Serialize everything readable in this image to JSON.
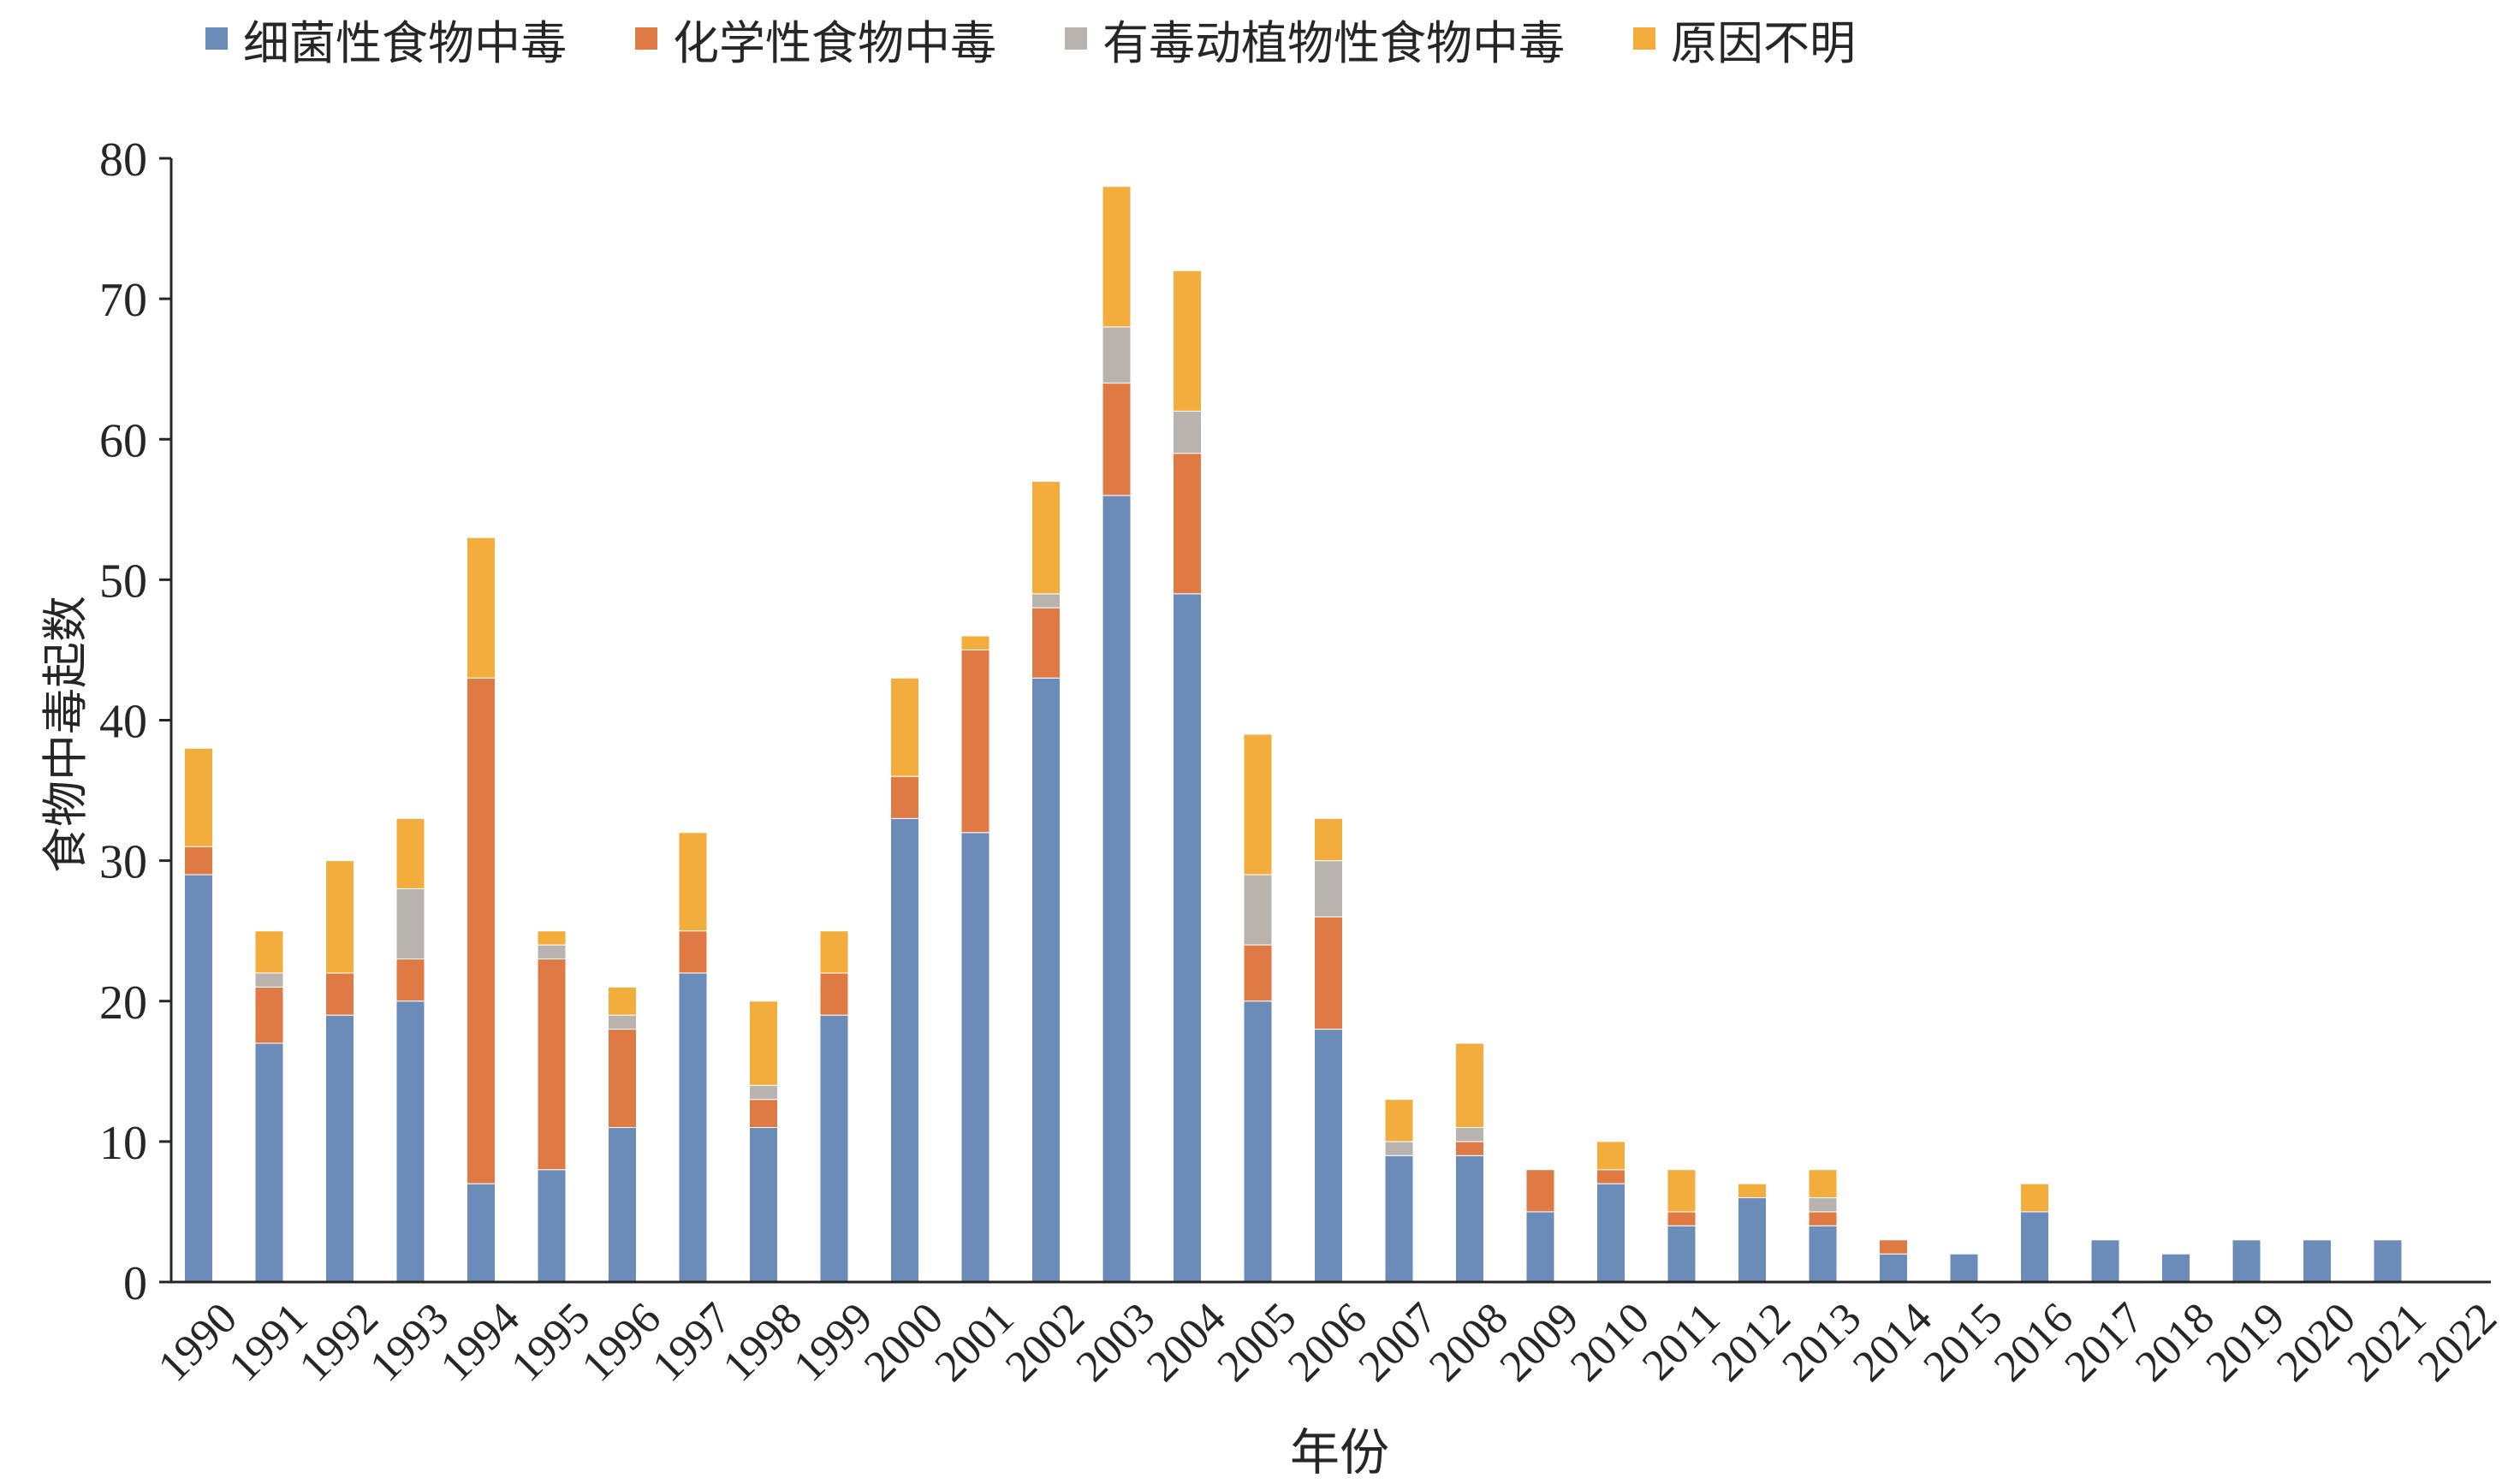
{
  "chart_data": {
    "type": "bar",
    "stacked": true,
    "title": "",
    "xlabel": "年份",
    "ylabel": "食物中毒起数",
    "ylim": [
      0,
      80
    ],
    "yticks": [
      0,
      10,
      20,
      30,
      40,
      50,
      60,
      70,
      80
    ],
    "legend_position": "top",
    "grid": false,
    "categories": [
      "1990",
      "1991",
      "1992",
      "1993",
      "1994",
      "1995",
      "1996",
      "1997",
      "1998",
      "1999",
      "2000",
      "2001",
      "2002",
      "2003",
      "2004",
      "2005",
      "2006",
      "2007",
      "2008",
      "2009",
      "2010",
      "2011",
      "2012",
      "2013",
      "2014",
      "2015",
      "2016",
      "2017",
      "2018",
      "2019",
      "2020",
      "2021",
      "2022"
    ],
    "series": [
      {
        "name": "细菌性食物中毒",
        "color": "#6b8bb8",
        "values": [
          29,
          17,
          19,
          20,
          7,
          8,
          11,
          22,
          11,
          19,
          33,
          32,
          43,
          56,
          49,
          20,
          18,
          9,
          9,
          5,
          7,
          4,
          6,
          4,
          2,
          2,
          5,
          3,
          2,
          3,
          3,
          3,
          0
        ]
      },
      {
        "name": "化学性食物中毒",
        "color": "#e07a45",
        "values": [
          2,
          4,
          3,
          3,
          36,
          15,
          7,
          3,
          2,
          3,
          3,
          13,
          5,
          8,
          10,
          4,
          8,
          0,
          1,
          3,
          1,
          1,
          0,
          1,
          1,
          0,
          0,
          0,
          0,
          0,
          0,
          0,
          0
        ]
      },
      {
        "name": "有毒动植物性食物中毒",
        "color": "#b9b3b0",
        "values": [
          0,
          1,
          0,
          5,
          0,
          1,
          1,
          0,
          1,
          0,
          0,
          0,
          1,
          4,
          3,
          5,
          4,
          1,
          1,
          0,
          0,
          0,
          0,
          1,
          0,
          0,
          0,
          0,
          0,
          0,
          0,
          0,
          0
        ]
      },
      {
        "name": "原因不明",
        "color": "#f2ad3c",
        "values": [
          7,
          3,
          8,
          5,
          10,
          1,
          2,
          7,
          6,
          3,
          7,
          1,
          8,
          10,
          10,
          10,
          3,
          3,
          6,
          0,
          2,
          3,
          1,
          2,
          0,
          0,
          2,
          0,
          0,
          0,
          0,
          0,
          0
        ]
      }
    ]
  }
}
